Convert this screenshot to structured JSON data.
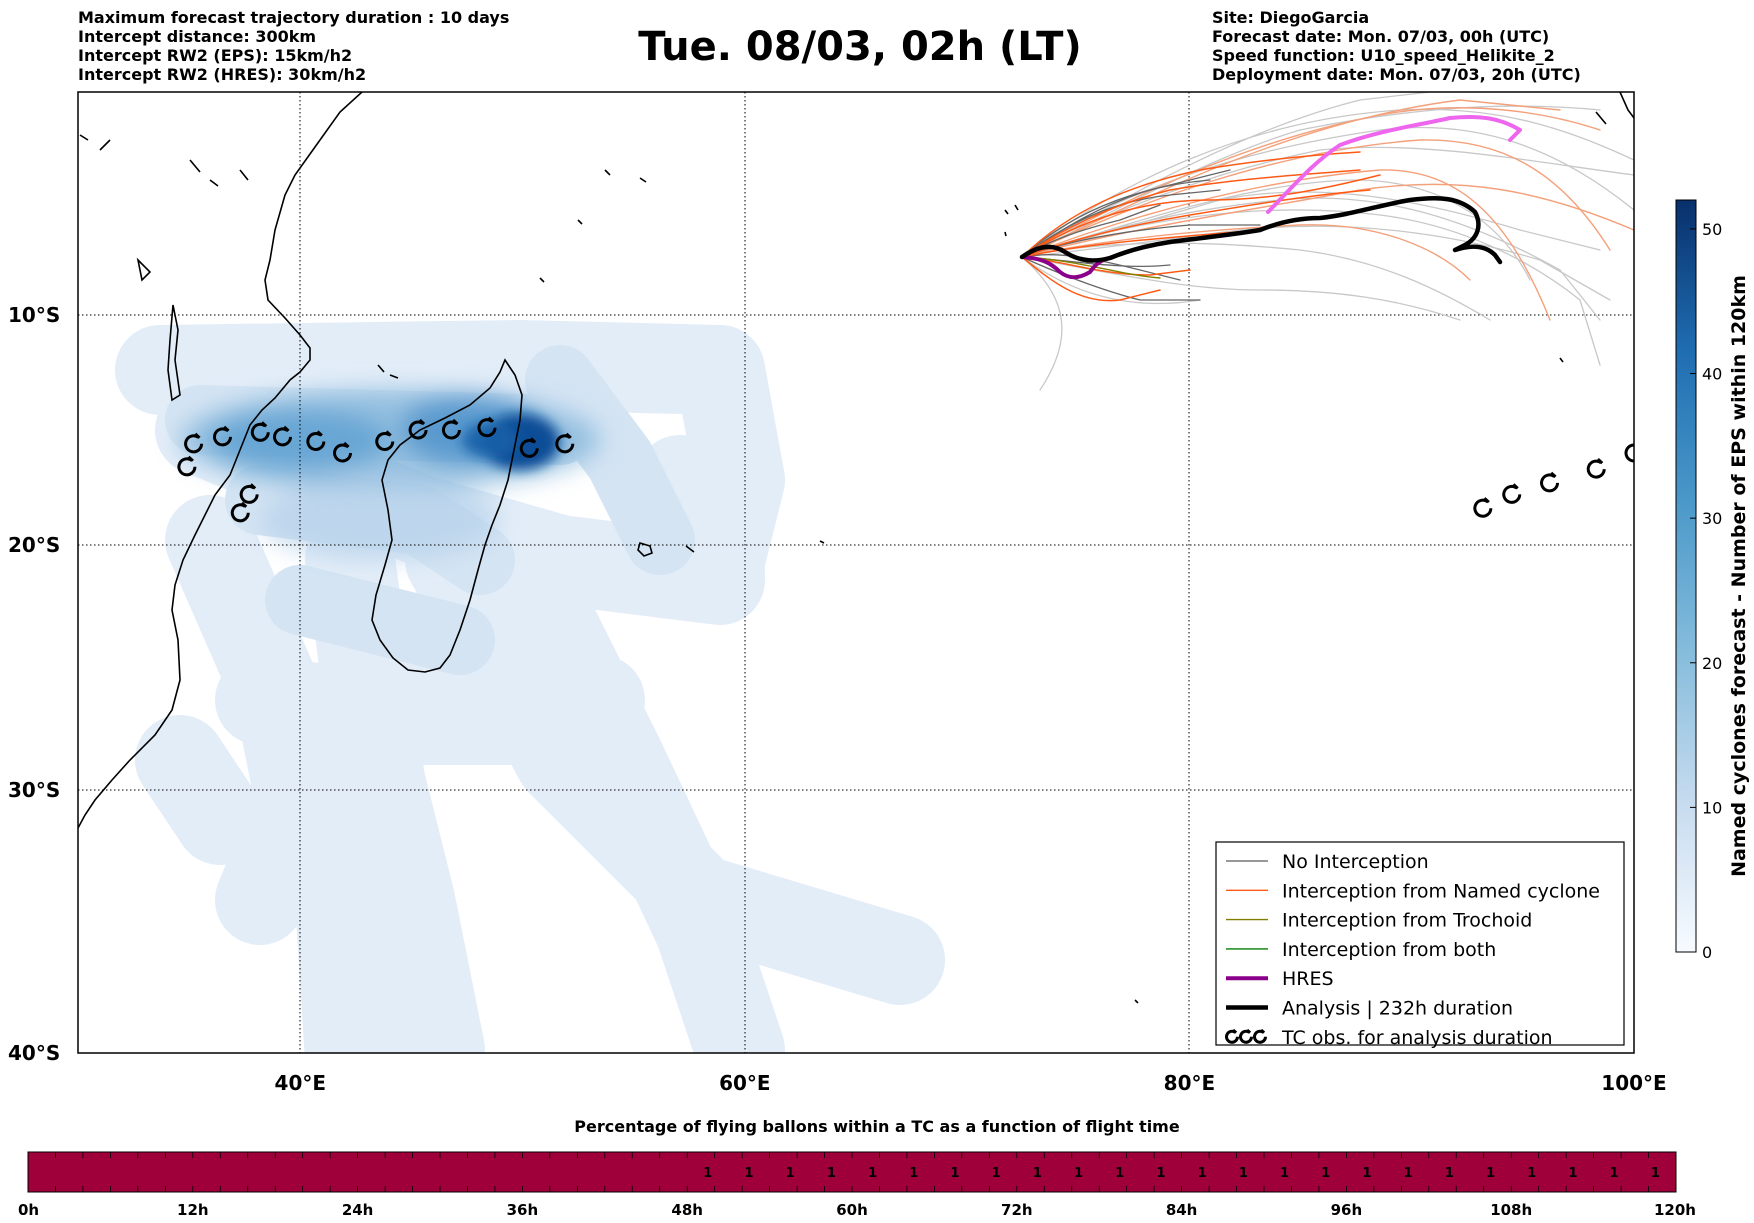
{
  "header": {
    "left_lines": [
      "Maximum forecast trajectory duration : 10 days",
      "Intercept distance: 300km",
      "Intercept RW2 (EPS):  15km/h2",
      "Intercept RW2 (HRES): 30km/h2"
    ],
    "title": "Tue. 08/03, 02h (LT)",
    "right_lines": [
      "Site: DiegoGarcia",
      "Forecast date: Mon. 07/03, 00h (UTC)",
      "Speed function: U10_speed_Helikite_2",
      "Deployment date: Mon. 07/03, 20h (UTC)"
    ]
  },
  "map": {
    "lon_range": [
      30,
      100
    ],
    "lat_range": [
      -40,
      0
    ],
    "x_ticks": [
      {
        "lon": 40,
        "label": "40°E"
      },
      {
        "lon": 60,
        "label": "60°E"
      },
      {
        "lon": 80,
        "label": "80°E"
      },
      {
        "lon": 100,
        "label": "100°E"
      }
    ],
    "y_ticks": [
      {
        "lat": -10,
        "label": "10°S"
      },
      {
        "lat": -20,
        "label": "20°S"
      },
      {
        "lat": -30,
        "label": "30°S"
      },
      {
        "lat": -40,
        "label": "40°S"
      }
    ],
    "colors": {
      "no_interception": "#777777",
      "named_cyclone": "#ff5a14",
      "trochoid": "#808000",
      "both": "#008000",
      "hres": "#8b008b",
      "analysis": "#000000",
      "forecast_pink": "#ee66ee",
      "density_base": "#deebf7",
      "density_core": "#084a91"
    },
    "tc_observations": [
      [
        34.9,
        -16.6
      ],
      [
        35.2,
        -15.6
      ],
      [
        36.5,
        -15.3
      ],
      [
        38.2,
        -15.1
      ],
      [
        39.2,
        -15.3
      ],
      [
        40.7,
        -15.5
      ],
      [
        41.9,
        -16.0
      ],
      [
        43.8,
        -15.5
      ],
      [
        45.3,
        -15.0
      ],
      [
        46.8,
        -15.0
      ],
      [
        48.4,
        -14.9
      ],
      [
        50.3,
        -15.8
      ],
      [
        51.9,
        -15.6
      ],
      [
        37.3,
        -18.6
      ],
      [
        37.7,
        -17.8
      ],
      [
        93.2,
        -18.4
      ],
      [
        94.5,
        -17.8
      ],
      [
        96.2,
        -17.3
      ],
      [
        98.3,
        -16.7
      ],
      [
        100.0,
        -16.0
      ]
    ]
  },
  "colorbar": {
    "label": "Named cyclones forecast - Number of EPS within 120km",
    "min": 0,
    "max": 52,
    "ticks": [
      0,
      10,
      20,
      30,
      40,
      50
    ]
  },
  "legend": {
    "items": [
      {
        "label": "No Interception",
        "style": "no_interception"
      },
      {
        "label": "Interception from Named cyclone",
        "style": "named_cyclone"
      },
      {
        "label": "Interception from Trochoid",
        "style": "trochoid"
      },
      {
        "label": "Interception from both",
        "style": "both"
      },
      {
        "label": "HRES",
        "style": "hres"
      },
      {
        "label": "Analysis | 232h duration",
        "style": "analysis"
      },
      {
        "label": "TC obs. for analysis duration",
        "style": "tc_obs"
      }
    ]
  },
  "flight_bar": {
    "title": "Percentage of flying ballons within a TC as a function of flight time",
    "color": "#a0003a",
    "hours_total": 120,
    "labels": [
      "0h",
      "12h",
      "24h",
      "36h",
      "48h",
      "60h",
      "72h",
      "84h",
      "96h",
      "108h",
      "120h"
    ],
    "values_start_hour": 48,
    "values": [
      "1",
      "1",
      "1",
      "1",
      "1",
      "1",
      "1",
      "1",
      "1",
      "1",
      "1",
      "1",
      "1",
      "1",
      "1",
      "1",
      "1",
      "1",
      "1",
      "1",
      "1",
      "1",
      "1",
      "1"
    ]
  }
}
